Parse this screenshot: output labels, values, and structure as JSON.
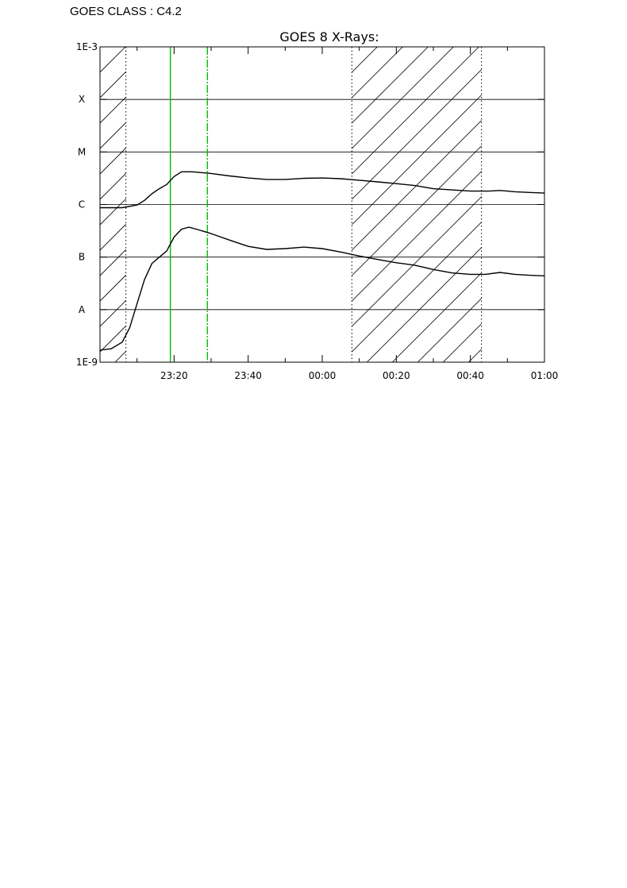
{
  "header": {
    "goes_class": "GOES CLASS : C4.2"
  },
  "chart_data": {
    "type": "line",
    "title": "GOES 8 X-Rays:",
    "xlabel": "",
    "ylabel": "",
    "y_scale": "log",
    "ylim": [
      1e-09,
      0.001
    ],
    "xlim": [
      "23:00",
      "01:00"
    ],
    "x_ticks": [
      "23:20",
      "23:40",
      "00:00",
      "00:20",
      "00:40",
      "01:00"
    ],
    "y_ticks": [
      {
        "value": 1e-09,
        "label": "1E-9"
      },
      {
        "value": 1e-08,
        "label": "A"
      },
      {
        "value": 1e-07,
        "label": "B"
      },
      {
        "value": 1e-06,
        "label": "C"
      },
      {
        "value": 1e-05,
        "label": "M"
      },
      {
        "value": 0.0001,
        "label": "X"
      },
      {
        "value": 0.001,
        "label": "1E-3"
      }
    ],
    "grid": "horizontal",
    "shaded_intervals": [
      [
        "23:00",
        "23:07"
      ],
      [
        "00:08",
        "00:43"
      ]
    ],
    "markers": [
      {
        "time": "23:19",
        "color": "#00bb00",
        "style": "solid"
      },
      {
        "time": "23:29",
        "color": "#00bb00",
        "style": "dash-dot"
      }
    ],
    "series": [
      {
        "points": [
          [
            "23:00",
            8.7e-07
          ],
          [
            "23:06",
            8.7e-07
          ],
          [
            "23:10",
            9.8e-07
          ],
          [
            "23:12",
            1.2e-06
          ],
          [
            "23:14",
            1.6e-06
          ],
          [
            "23:16",
            2e-06
          ],
          [
            "23:18",
            2.4e-06
          ],
          [
            "23:20",
            3.4e-06
          ],
          [
            "23:22",
            4.2e-06
          ],
          [
            "23:25",
            4.2e-06
          ],
          [
            "23:30",
            3.9e-06
          ],
          [
            "23:35",
            3.5e-06
          ],
          [
            "23:40",
            3.2e-06
          ],
          [
            "23:45",
            3e-06
          ],
          [
            "23:50",
            3e-06
          ],
          [
            "23:55",
            3.15e-06
          ],
          [
            "00:00",
            3.2e-06
          ],
          [
            "00:05",
            3.1e-06
          ],
          [
            "00:10",
            2.9e-06
          ],
          [
            "00:15",
            2.7e-06
          ],
          [
            "00:20",
            2.5e-06
          ],
          [
            "00:25",
            2.3e-06
          ],
          [
            "00:30",
            2e-06
          ],
          [
            "00:35",
            1.9e-06
          ],
          [
            "00:40",
            1.8e-06
          ],
          [
            "00:45",
            1.8e-06
          ],
          [
            "00:48",
            1.85e-06
          ],
          [
            "00:52",
            1.75e-06
          ],
          [
            "00:56",
            1.7e-06
          ],
          [
            "01:00",
            1.65e-06
          ]
        ]
      },
      {
        "points": [
          [
            "23:00",
            1.7e-09
          ],
          [
            "23:03",
            1.8e-09
          ],
          [
            "23:06",
            2.4e-09
          ],
          [
            "23:08",
            4.5e-09
          ],
          [
            "23:10",
            1.3e-08
          ],
          [
            "23:12",
            3.7e-08
          ],
          [
            "23:14",
            7.5e-08
          ],
          [
            "23:16",
            1e-07
          ],
          [
            "23:18",
            1.3e-07
          ],
          [
            "23:20",
            2.4e-07
          ],
          [
            "23:22",
            3.4e-07
          ],
          [
            "23:24",
            3.7e-07
          ],
          [
            "23:26",
            3.4e-07
          ],
          [
            "23:30",
            2.8e-07
          ],
          [
            "23:35",
            2.1e-07
          ],
          [
            "23:40",
            1.6e-07
          ],
          [
            "23:45",
            1.4e-07
          ],
          [
            "23:50",
            1.45e-07
          ],
          [
            "23:55",
            1.55e-07
          ],
          [
            "00:00",
            1.45e-07
          ],
          [
            "00:05",
            1.25e-07
          ],
          [
            "00:10",
            1.05e-07
          ],
          [
            "00:15",
            9e-08
          ],
          [
            "00:20",
            7.8e-08
          ],
          [
            "00:25",
            7e-08
          ],
          [
            "00:30",
            5.8e-08
          ],
          [
            "00:35",
            5e-08
          ],
          [
            "00:40",
            4.7e-08
          ],
          [
            "00:44",
            4.7e-08
          ],
          [
            "00:48",
            5.1e-08
          ],
          [
            "00:52",
            4.7e-08
          ],
          [
            "00:56",
            4.5e-08
          ],
          [
            "01:00",
            4.4e-08
          ]
        ]
      }
    ]
  }
}
